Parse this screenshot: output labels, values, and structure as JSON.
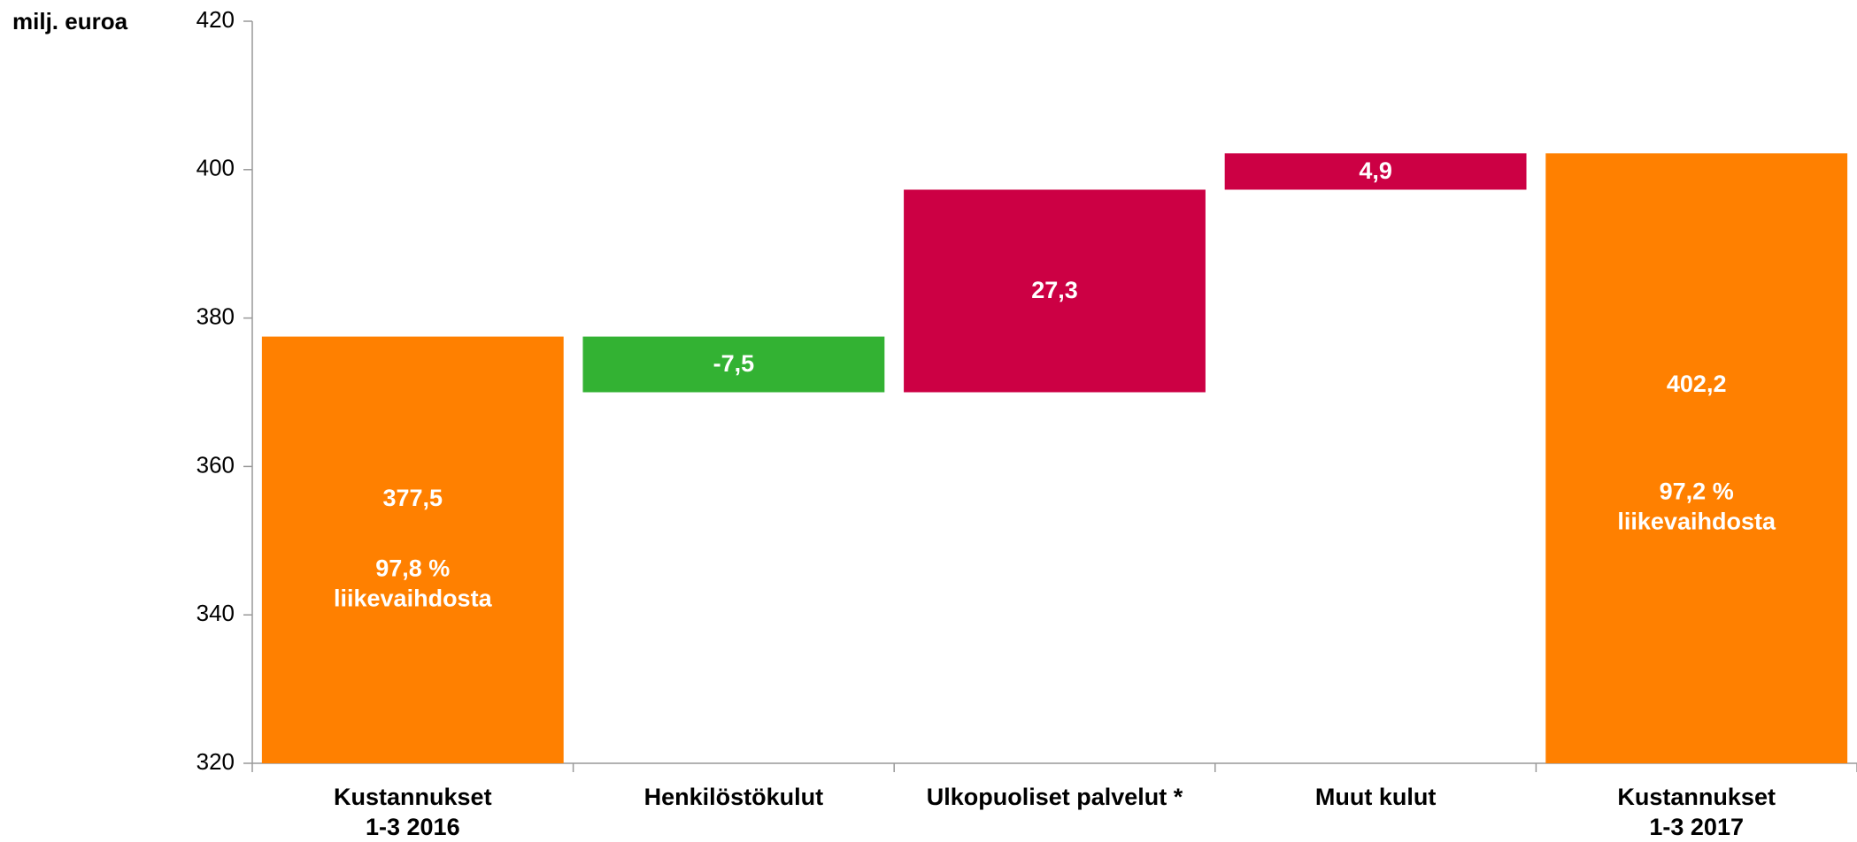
{
  "chart_data": {
    "type": "waterfall",
    "y_label": "milj. euroa",
    "categories": [
      "Kustannukset\n1-3 2016",
      "Henkilöstökulut",
      "Ulkopuoliset palvelut *",
      "Muut kulut",
      "Kustannukset\n1-3 2017"
    ],
    "values": [
      377.5,
      -7.5,
      27.3,
      4.9,
      402.2
    ],
    "value_labels": [
      "377,5",
      "-7,5",
      "27,3",
      "4,9",
      "402,2"
    ],
    "total": [
      true,
      false,
      false,
      false,
      true
    ],
    "notes": [
      "97,8 %\nliikevaihdosta",
      null,
      null,
      null,
      "97,2 %\nliikevaihdosta"
    ],
    "colors": {
      "total": "#ff8000",
      "decrease": "#33b233",
      "increase": "#cc0044"
    },
    "ylim": [
      320,
      420
    ],
    "yticks": [
      320,
      340,
      360,
      380,
      400,
      420
    ]
  }
}
